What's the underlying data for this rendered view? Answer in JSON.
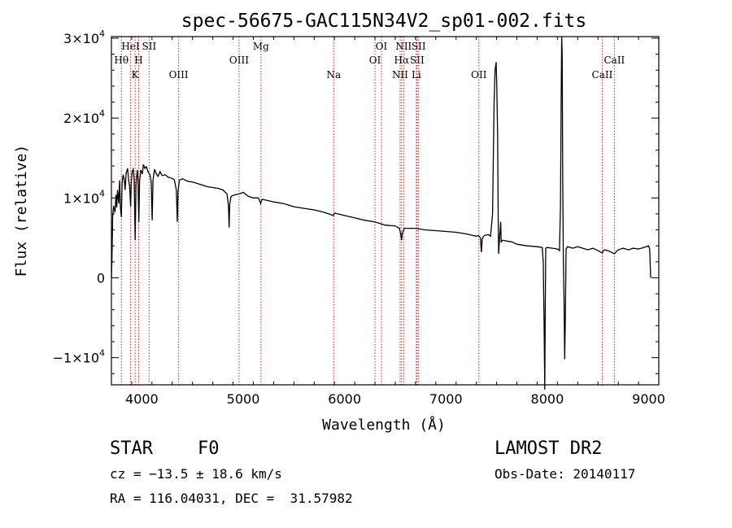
{
  "chart_data": {
    "type": "line",
    "title": "spec-56675-GAC115N34V2_sp01-002.fits",
    "xlabel": "Wavelength (Å)",
    "ylabel": "Flux (relative)",
    "xlim": [
      3700,
      9100
    ],
    "ylim": [
      -13400,
      30200
    ],
    "x_ticks": [
      4000,
      5000,
      6000,
      7000,
      8000,
      9000
    ],
    "x_tick_labels": [
      "4000",
      "5000",
      "6000",
      "7000",
      "8000",
      "9000"
    ],
    "y_ticks": [
      {
        "value": -10000,
        "mantissa": "−1×10",
        "exp": "4"
      },
      {
        "value": 0,
        "mantissa": "0",
        "exp": ""
      },
      {
        "value": 10000,
        "mantissa": "1×10",
        "exp": "4"
      },
      {
        "value": 20000,
        "mantissa": "2×10",
        "exp": "4"
      },
      {
        "value": 30000,
        "mantissa": "3×10",
        "exp": "4"
      }
    ],
    "spectral_lines": [
      {
        "label": "Hθ",
        "x": 3798,
        "row": 2
      },
      {
        "label": "HeI",
        "x": 3889,
        "row": 1
      },
      {
        "label": "K",
        "x": 3934,
        "row": 3
      },
      {
        "label": "H",
        "x": 3969,
        "row": 2
      },
      {
        "label": "SII",
        "x": 4072,
        "row": 1
      },
      {
        "label": "OIII",
        "x": 4363,
        "row": 3
      },
      {
        "label": "OIII",
        "x": 4959,
        "row": 2
      },
      {
        "label": "Mg",
        "x": 5175,
        "row": 1
      },
      {
        "label": "Na",
        "x": 5893,
        "row": 3
      },
      {
        "label": "OI",
        "x": 6300,
        "row": 2
      },
      {
        "label": "OI",
        "x": 6364,
        "row": 1
      },
      {
        "label": "NII",
        "x": 6548,
        "row": 3
      },
      {
        "label": "Hα",
        "x": 6563,
        "row": 2
      },
      {
        "label": "NII",
        "x": 6583,
        "row": 1
      },
      {
        "label": "Li",
        "x": 6708,
        "row": 3
      },
      {
        "label": "SII",
        "x": 6716,
        "row": 2
      },
      {
        "label": "SII",
        "x": 6731,
        "row": 1
      },
      {
        "label": "OII",
        "x": 7325,
        "row": 3
      },
      {
        "label": "CaII",
        "x": 8542,
        "row": 3
      },
      {
        "label": "CaII",
        "x": 8662,
        "row": 2
      }
    ],
    "series": [
      {
        "values": [
          [
            3700,
            0
          ],
          [
            3705,
            2000
          ],
          [
            3712,
            7600
          ],
          [
            3722,
            9000
          ],
          [
            3735,
            8200
          ],
          [
            3745,
            10400
          ],
          [
            3752,
            8800
          ],
          [
            3760,
            11000
          ],
          [
            3772,
            9300
          ],
          [
            3780,
            12200
          ],
          [
            3789,
            8800
          ],
          [
            3798,
            7600
          ],
          [
            3805,
            11800
          ],
          [
            3815,
            12900
          ],
          [
            3827,
            12300
          ],
          [
            3835,
            11000
          ],
          [
            3845,
            13100
          ],
          [
            3860,
            13700
          ],
          [
            3870,
            12200
          ],
          [
            3880,
            11400
          ],
          [
            3889,
            8900
          ],
          [
            3895,
            11800
          ],
          [
            3905,
            13300
          ],
          [
            3915,
            13600
          ],
          [
            3925,
            12300
          ],
          [
            3934,
            4700
          ],
          [
            3942,
            11700
          ],
          [
            3955,
            13500
          ],
          [
            3962,
            12200
          ],
          [
            3970,
            7000
          ],
          [
            3978,
            12100
          ],
          [
            3990,
            13500
          ],
          [
            4005,
            13000
          ],
          [
            4015,
            14200
          ],
          [
            4030,
            13700
          ],
          [
            4045,
            13900
          ],
          [
            4060,
            13300
          ],
          [
            4070,
            13100
          ],
          [
            4080,
            12900
          ],
          [
            4092,
            12000
          ],
          [
            4102,
            7200
          ],
          [
            4110,
            12200
          ],
          [
            4125,
            13600
          ],
          [
            4140,
            13100
          ],
          [
            4160,
            12700
          ],
          [
            4180,
            13300
          ],
          [
            4200,
            12800
          ],
          [
            4230,
            12900
          ],
          [
            4260,
            12600
          ],
          [
            4290,
            12500
          ],
          [
            4320,
            12300
          ],
          [
            4340,
            11000
          ],
          [
            4350,
            7000
          ],
          [
            4357,
            10800
          ],
          [
            4370,
            12200
          ],
          [
            4400,
            12400
          ],
          [
            4450,
            12100
          ],
          [
            4500,
            12000
          ],
          [
            4550,
            11800
          ],
          [
            4600,
            11600
          ],
          [
            4650,
            11400
          ],
          [
            4700,
            11300
          ],
          [
            4750,
            11200
          ],
          [
            4800,
            11000
          ],
          [
            4840,
            10500
          ],
          [
            4855,
            9000
          ],
          [
            4861,
            6300
          ],
          [
            4867,
            9200
          ],
          [
            4880,
            10200
          ],
          [
            4920,
            10400
          ],
          [
            4960,
            10500
          ],
          [
            5000,
            10700
          ],
          [
            5050,
            10200
          ],
          [
            5100,
            10000
          ],
          [
            5150,
            10000
          ],
          [
            5172,
            9300
          ],
          [
            5185,
            9800
          ],
          [
            5200,
            9800
          ],
          [
            5300,
            9500
          ],
          [
            5400,
            9300
          ],
          [
            5500,
            8900
          ],
          [
            5600,
            8700
          ],
          [
            5700,
            8500
          ],
          [
            5800,
            8200
          ],
          [
            5890,
            7800
          ],
          [
            5900,
            8100
          ],
          [
            6000,
            7800
          ],
          [
            6100,
            7500
          ],
          [
            6200,
            7200
          ],
          [
            6300,
            7000
          ],
          [
            6400,
            6600
          ],
          [
            6500,
            6500
          ],
          [
            6540,
            6200
          ],
          [
            6555,
            5500
          ],
          [
            6563,
            4700
          ],
          [
            6570,
            5600
          ],
          [
            6590,
            6200
          ],
          [
            6700,
            6200
          ],
          [
            6800,
            6000
          ],
          [
            6900,
            5900
          ],
          [
            7000,
            5800
          ],
          [
            7100,
            5700
          ],
          [
            7200,
            5500
          ],
          [
            7300,
            5200
          ],
          [
            7320,
            5300
          ],
          [
            7340,
            5000
          ],
          [
            7350,
            3200
          ],
          [
            7358,
            4900
          ],
          [
            7380,
            5300
          ],
          [
            7420,
            5400
          ],
          [
            7440,
            5200
          ],
          [
            7460,
            8000
          ],
          [
            7475,
            22000
          ],
          [
            7485,
            26000
          ],
          [
            7495,
            27000
          ],
          [
            7502,
            24000
          ],
          [
            7510,
            18000
          ],
          [
            7515,
            8000
          ],
          [
            7520,
            3000
          ],
          [
            7530,
            5200
          ],
          [
            7535,
            6000
          ],
          [
            7540,
            7000
          ],
          [
            7545,
            4500
          ],
          [
            7560,
            4700
          ],
          [
            7600,
            4600
          ],
          [
            7650,
            4500
          ],
          [
            7700,
            4200
          ],
          [
            7800,
            4000
          ],
          [
            7900,
            3900
          ],
          [
            7950,
            3800
          ],
          [
            7960,
            2000
          ],
          [
            7968,
            -5000
          ],
          [
            7975,
            -14000
          ],
          [
            7980,
            -4000
          ],
          [
            7985,
            3700
          ],
          [
            8000,
            3800
          ],
          [
            8050,
            3700
          ],
          [
            8100,
            3600
          ],
          [
            8120,
            3400
          ],
          [
            8130,
            9000
          ],
          [
            8138,
            24000
          ],
          [
            8142,
            30200
          ],
          [
            8147,
            28000
          ],
          [
            8152,
            12000
          ],
          [
            8158,
            3000
          ],
          [
            8165,
            -3000
          ],
          [
            8172,
            -10200
          ],
          [
            8178,
            -5000
          ],
          [
            8185,
            3600
          ],
          [
            8200,
            3900
          ],
          [
            8250,
            3700
          ],
          [
            8300,
            3900
          ],
          [
            8350,
            3700
          ],
          [
            8400,
            3500
          ],
          [
            8450,
            3700
          ],
          [
            8500,
            3400
          ],
          [
            8542,
            3100
          ],
          [
            8560,
            3500
          ],
          [
            8600,
            3400
          ],
          [
            8662,
            3000
          ],
          [
            8700,
            3500
          ],
          [
            8750,
            3700
          ],
          [
            8800,
            3500
          ],
          [
            8850,
            3700
          ],
          [
            8900,
            3600
          ],
          [
            8950,
            3800
          ],
          [
            9000,
            4000
          ],
          [
            9010,
            3600
          ],
          [
            9020,
            0
          ]
        ]
      }
    ]
  },
  "info": {
    "class": "STAR",
    "subclass": "F0",
    "survey": "LAMOST DR2",
    "redshift": "cz = −13.5 ± 18.6 km/s",
    "obs_date": "Obs-Date: 20140117",
    "coords": "RA = 116.04031, DEC =  31.57982"
  },
  "colors": {
    "line": "#000000",
    "marker": "#cc2222",
    "background": "#ffffff"
  }
}
